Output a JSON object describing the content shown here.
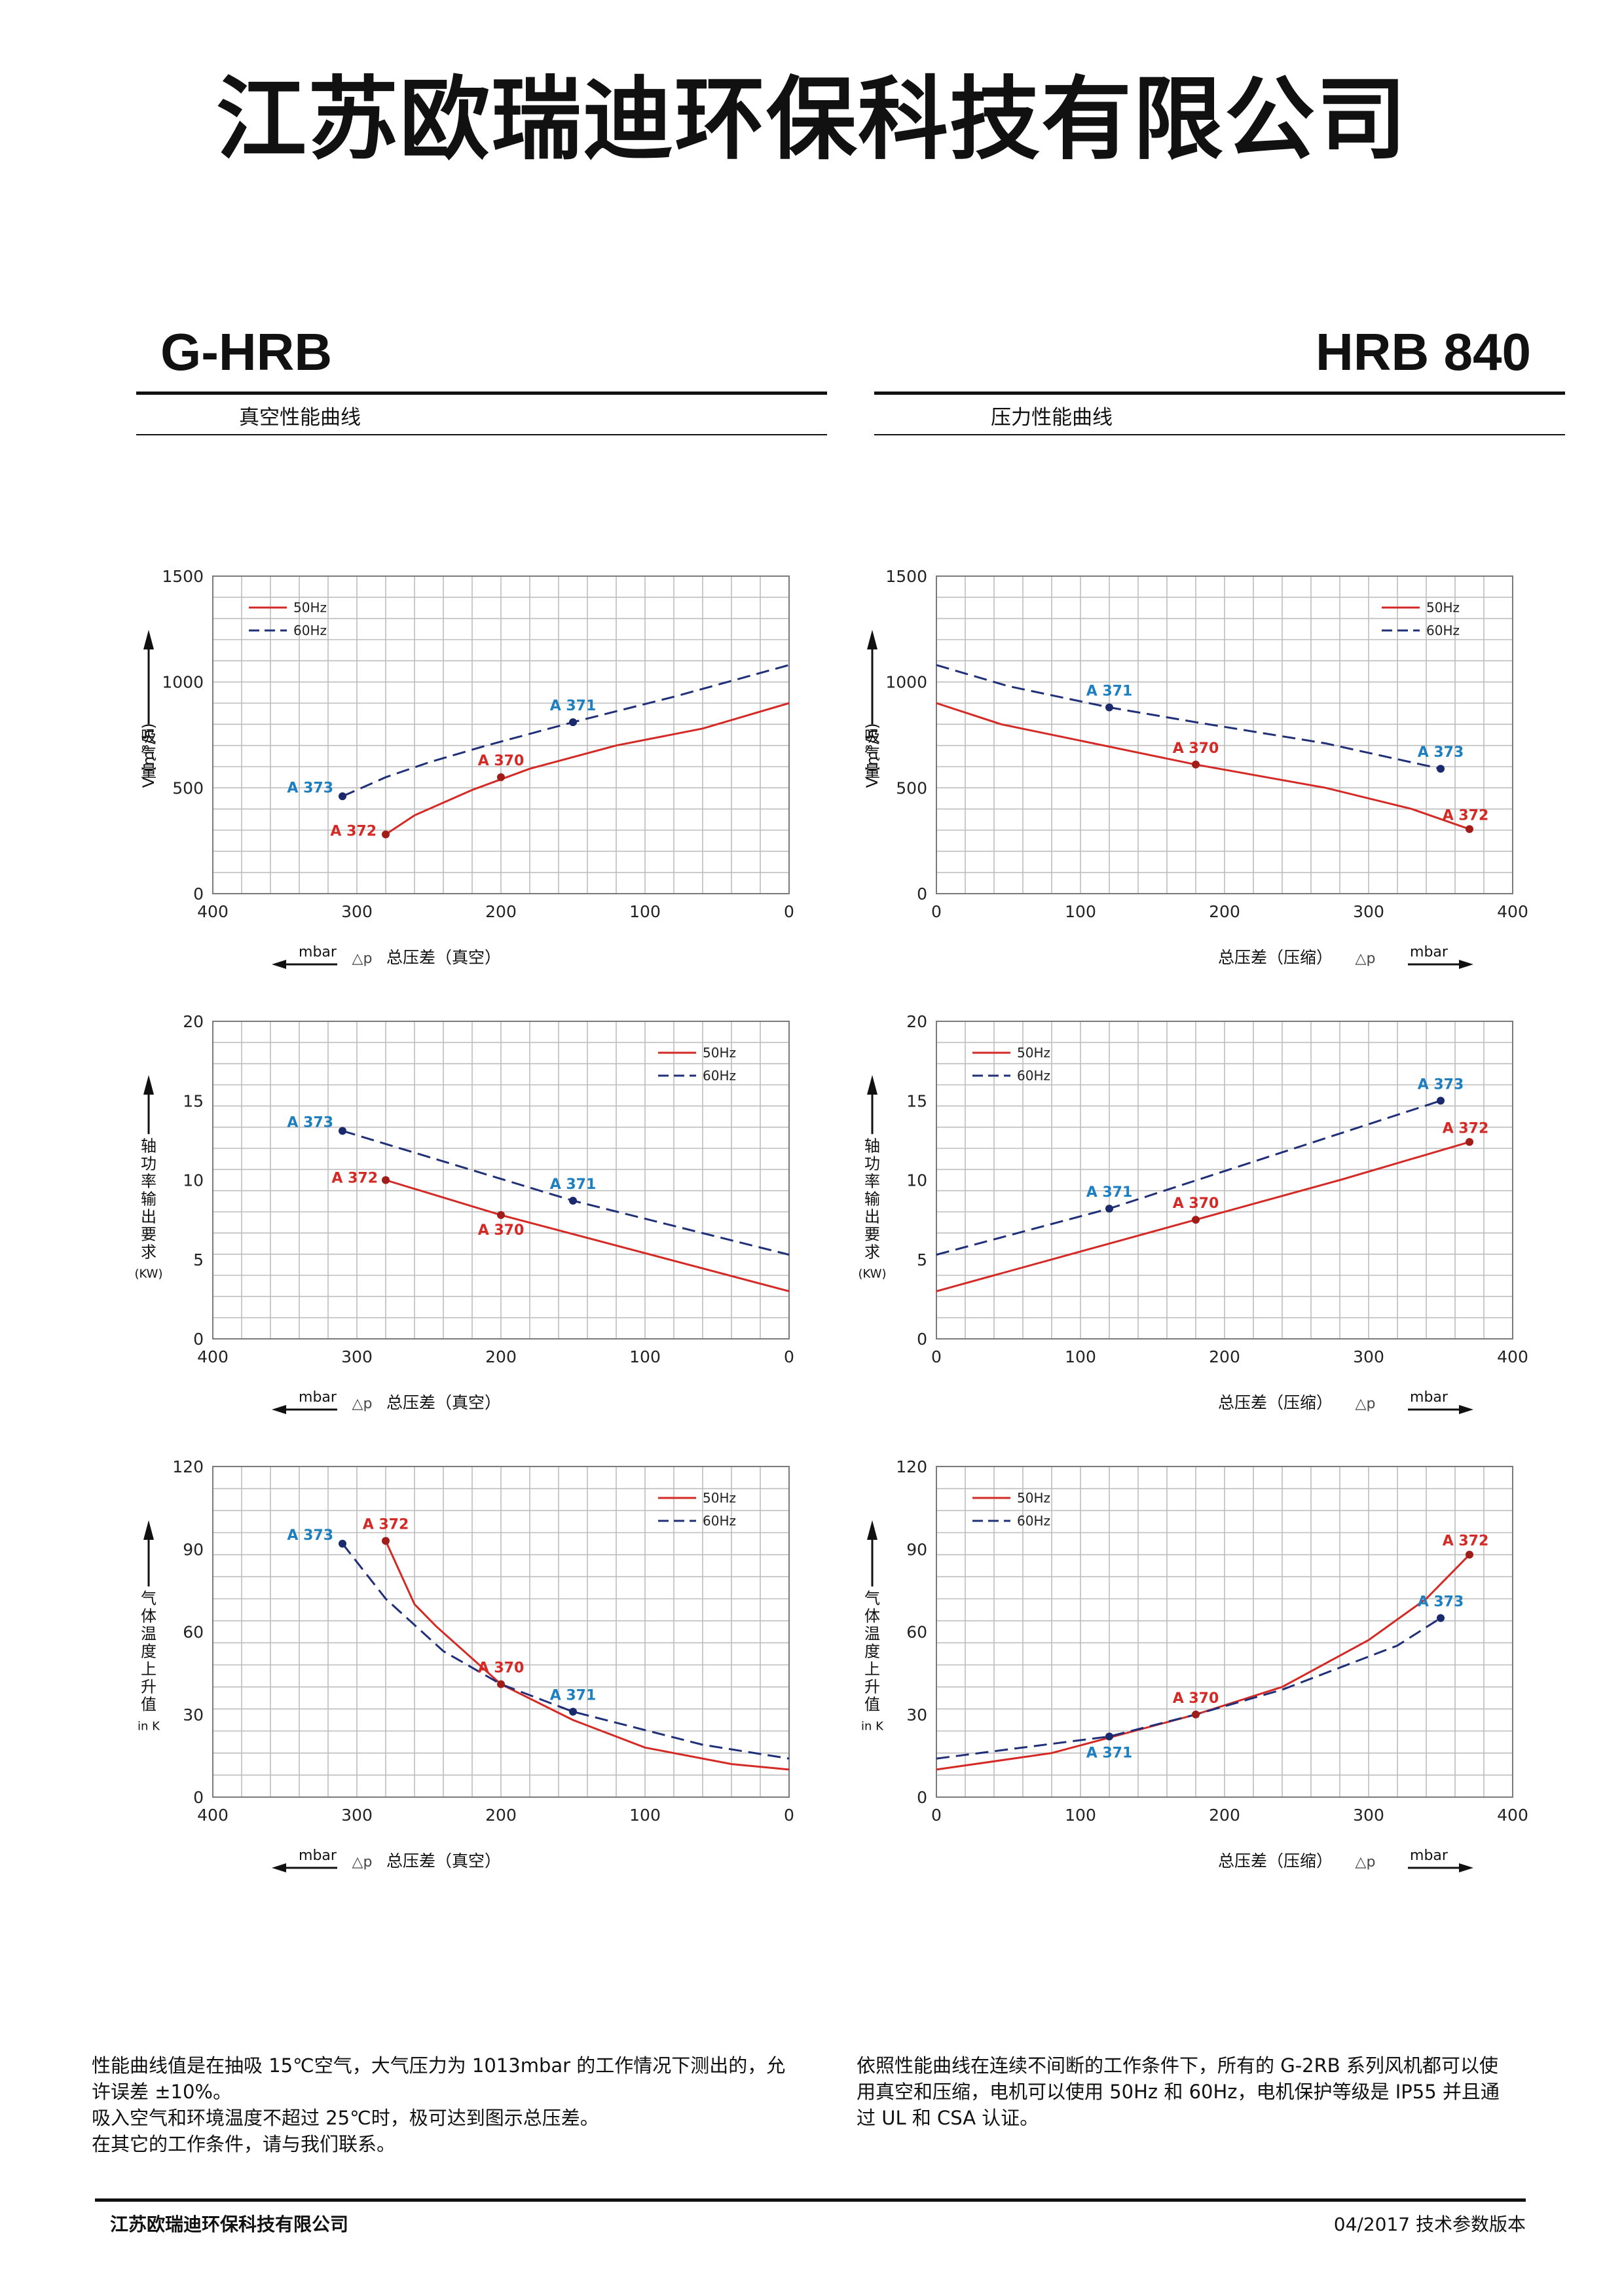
{
  "company": "江苏欧瑞迪环保科技有限公司",
  "header": {
    "left_title": "G-HRB",
    "right_title": "HRB 840",
    "left_subtitle": "真空性能曲线",
    "right_subtitle": "压力性能曲线"
  },
  "colors": {
    "hz50": "#d42a26",
    "hz60": "#1f2f78",
    "label50": "#d42a26",
    "label60": "#1d7fc0",
    "grid": "#bdbdbd"
  },
  "notes": {
    "left": [
      "性能曲线值是在抽吸 15℃空气，大气压力为 1013mbar 的工作情况下测出的，允",
      "许误差 ±10%。",
      "吸入空气和环境温度不超过 25℃时，极可达到图示总压差。",
      "在其它的工作条件，请与我们联系。"
    ],
    "right": [
      "依照性能曲线在连续不间断的工作条件下，所有的 G-2RB 系列风机都可以使",
      "用真空和压缩，电机可以使用 50Hz 和 60Hz，电机保护等级是 IP55 并且通",
      "过 UL 和 CSA 认证。"
    ]
  },
  "footer": {
    "company": "江苏欧瑞迪环保科技有限公司",
    "version": "04/2017 技术参数版本"
  },
  "chart_data": [
    {
      "type": "line",
      "mode": "vacuum",
      "xlim": [
        400,
        0
      ],
      "ylim": [
        0,
        1500
      ],
      "xticks": [
        400,
        300,
        200,
        100,
        0
      ],
      "yticks": [
        0,
        500,
        1000,
        1500
      ],
      "ylabel_lines": [
        "吸",
        "气",
        "量"
      ],
      "ylabel_side": "V (m³/h)",
      "xlabel": "总压差（真空）",
      "delta": "△p",
      "unit": "mbar",
      "legend": "top-left",
      "series": [
        {
          "name": "50Hz",
          "dash": false,
          "points": [
            [
              280,
              280
            ],
            [
              260,
              370
            ],
            [
              220,
              490
            ],
            [
              180,
              590
            ],
            [
              120,
              700
            ],
            [
              60,
              780
            ],
            [
              0,
              900
            ]
          ]
        },
        {
          "name": "60Hz",
          "dash": true,
          "points": [
            [
              310,
              460
            ],
            [
              280,
              550
            ],
            [
              250,
              620
            ],
            [
              210,
              700
            ],
            [
              150,
              810
            ],
            [
              80,
              930
            ],
            [
              0,
              1080
            ]
          ]
        }
      ],
      "markers": [
        {
          "x": 280,
          "y": 280,
          "label": "A 372",
          "series": 0
        },
        {
          "x": 200,
          "y": 550,
          "label": "A 370",
          "series": 0
        },
        {
          "x": 310,
          "y": 460,
          "label": "A 373",
          "series": 1
        },
        {
          "x": 150,
          "y": 810,
          "label": "A 371",
          "series": 1
        }
      ]
    },
    {
      "type": "line",
      "mode": "pressure",
      "xlim": [
        0,
        400
      ],
      "ylim": [
        0,
        1500
      ],
      "xticks": [
        0,
        100,
        200,
        300,
        400
      ],
      "yticks": [
        0,
        500,
        1000,
        1500
      ],
      "ylabel_lines": [
        "吸",
        "气",
        "量"
      ],
      "ylabel_side": "V (m³/h)",
      "xlabel": "总压差（压缩）",
      "delta": "△p",
      "unit": "mbar",
      "legend": "top-right",
      "series": [
        {
          "name": "50Hz",
          "dash": false,
          "points": [
            [
              0,
              900
            ],
            [
              45,
              800
            ],
            [
              180,
              610
            ],
            [
              270,
              500
            ],
            [
              330,
              400
            ],
            [
              370,
              305
            ]
          ]
        },
        {
          "name": "60Hz",
          "dash": true,
          "points": [
            [
              0,
              1080
            ],
            [
              50,
              980
            ],
            [
              120,
              880
            ],
            [
              180,
              810
            ],
            [
              270,
              710
            ],
            [
              350,
              590
            ]
          ]
        }
      ],
      "markers": [
        {
          "x": 180,
          "y": 610,
          "label": "A 370",
          "series": 0
        },
        {
          "x": 370,
          "y": 305,
          "label": "A 372",
          "series": 0
        },
        {
          "x": 120,
          "y": 880,
          "label": "A 371",
          "series": 1
        },
        {
          "x": 350,
          "y": 590,
          "label": "A 373",
          "series": 1
        }
      ]
    },
    {
      "type": "line",
      "mode": "vacuum",
      "xlim": [
        400,
        0
      ],
      "ylim": [
        0,
        20
      ],
      "xticks": [
        400,
        300,
        200,
        100,
        0
      ],
      "yticks": [
        0,
        5,
        10,
        15,
        20
      ],
      "ylabel_lines": [
        "轴",
        "功",
        "率",
        "输",
        "出",
        "要",
        "求"
      ],
      "ylabel_unit": "(KW)",
      "xlabel": "总压差（真空）",
      "delta": "△p",
      "unit": "mbar",
      "legend": "top-right",
      "series": [
        {
          "name": "50Hz",
          "dash": false,
          "points": [
            [
              280,
              10
            ],
            [
              200,
              7.8
            ],
            [
              0,
              3
            ]
          ]
        },
        {
          "name": "60Hz",
          "dash": true,
          "points": [
            [
              310,
              13.1
            ],
            [
              150,
              8.7
            ],
            [
              0,
              5.3
            ]
          ]
        }
      ],
      "markers": [
        {
          "x": 280,
          "y": 10,
          "label": "A 372",
          "series": 0
        },
        {
          "x": 200,
          "y": 7.8,
          "label": "A 370",
          "series": 0
        },
        {
          "x": 310,
          "y": 13.1,
          "label": "A 373",
          "series": 1
        },
        {
          "x": 150,
          "y": 8.7,
          "label": "A 371",
          "series": 1
        }
      ]
    },
    {
      "type": "line",
      "mode": "pressure",
      "xlim": [
        0,
        400
      ],
      "ylim": [
        0,
        20
      ],
      "xticks": [
        0,
        100,
        200,
        300,
        400
      ],
      "yticks": [
        0,
        5,
        10,
        15,
        20
      ],
      "ylabel_lines": [
        "轴",
        "功",
        "率",
        "输",
        "出",
        "要",
        "求"
      ],
      "ylabel_unit": "(KW)",
      "xlabel": "总压差（压缩）",
      "delta": "△p",
      "unit": "mbar",
      "legend": "top-left",
      "series": [
        {
          "name": "50Hz",
          "dash": false,
          "points": [
            [
              0,
              3
            ],
            [
              180,
              7.5
            ],
            [
              280,
              10
            ],
            [
              370,
              12.4
            ]
          ]
        },
        {
          "name": "60Hz",
          "dash": true,
          "points": [
            [
              0,
              5.3
            ],
            [
              120,
              8.2
            ],
            [
              350,
              15
            ]
          ]
        }
      ],
      "markers": [
        {
          "x": 180,
          "y": 7.5,
          "label": "A 370",
          "series": 0
        },
        {
          "x": 370,
          "y": 12.4,
          "label": "A 372",
          "series": 0
        },
        {
          "x": 120,
          "y": 8.2,
          "label": "A 371",
          "series": 1
        },
        {
          "x": 350,
          "y": 15,
          "label": "A 373",
          "series": 1
        }
      ]
    },
    {
      "type": "line",
      "mode": "vacuum",
      "xlim": [
        400,
        0
      ],
      "ylim": [
        0,
        120
      ],
      "xticks": [
        400,
        300,
        200,
        100,
        0
      ],
      "yticks": [
        0,
        30,
        60,
        90,
        120
      ],
      "ylabel_lines": [
        "气",
        "体",
        "温",
        "度",
        "上",
        "升",
        "值"
      ],
      "ylabel_unit": "in K",
      "xlabel": "总压差（真空）",
      "delta": "△p",
      "unit": "mbar",
      "legend": "top-right",
      "series": [
        {
          "name": "50Hz",
          "dash": false,
          "points": [
            [
              280,
              93
            ],
            [
              260,
              70
            ],
            [
              245,
              62
            ],
            [
              200,
              41
            ],
            [
              150,
              28
            ],
            [
              100,
              18
            ],
            [
              40,
              12
            ],
            [
              0,
              10
            ]
          ]
        },
        {
          "name": "60Hz",
          "dash": true,
          "points": [
            [
              310,
              92
            ],
            [
              280,
              72
            ],
            [
              240,
              53
            ],
            [
              200,
              41
            ],
            [
              150,
              31
            ],
            [
              60,
              19
            ],
            [
              0,
              14
            ]
          ]
        }
      ],
      "markers": [
        {
          "x": 280,
          "y": 93,
          "label": "A 372",
          "series": 0
        },
        {
          "x": 200,
          "y": 41,
          "label": "A 370",
          "series": 0
        },
        {
          "x": 310,
          "y": 92,
          "label": "A 373",
          "series": 1
        },
        {
          "x": 150,
          "y": 31,
          "label": "A 371",
          "series": 1
        }
      ]
    },
    {
      "type": "line",
      "mode": "pressure",
      "xlim": [
        0,
        400
      ],
      "ylim": [
        0,
        120
      ],
      "xticks": [
        0,
        100,
        200,
        300,
        400
      ],
      "yticks": [
        0,
        30,
        60,
        90,
        120
      ],
      "ylabel_lines": [
        "气",
        "体",
        "温",
        "度",
        "上",
        "升",
        "值"
      ],
      "ylabel_unit": "in K",
      "xlabel": "总压差（压缩）",
      "delta": "△p",
      "unit": "mbar",
      "legend": "top-left",
      "series": [
        {
          "name": "50Hz",
          "dash": false,
          "points": [
            [
              0,
              10
            ],
            [
              80,
              16
            ],
            [
              180,
              30
            ],
            [
              240,
              40
            ],
            [
              300,
              57
            ],
            [
              340,
              72
            ],
            [
              370,
              88
            ]
          ]
        },
        {
          "name": "60Hz",
          "dash": true,
          "points": [
            [
              0,
              14
            ],
            [
              120,
              22
            ],
            [
              180,
              30
            ],
            [
              240,
              39
            ],
            [
              320,
              55
            ],
            [
              350,
              65
            ]
          ]
        }
      ],
      "markers": [
        {
          "x": 180,
          "y": 30,
          "label": "A 370",
          "series": 0
        },
        {
          "x": 370,
          "y": 88,
          "label": "A 372",
          "series": 0
        },
        {
          "x": 120,
          "y": 22,
          "label": "A 371",
          "series": 1
        },
        {
          "x": 350,
          "y": 65,
          "label": "A 373",
          "series": 1
        }
      ]
    }
  ]
}
